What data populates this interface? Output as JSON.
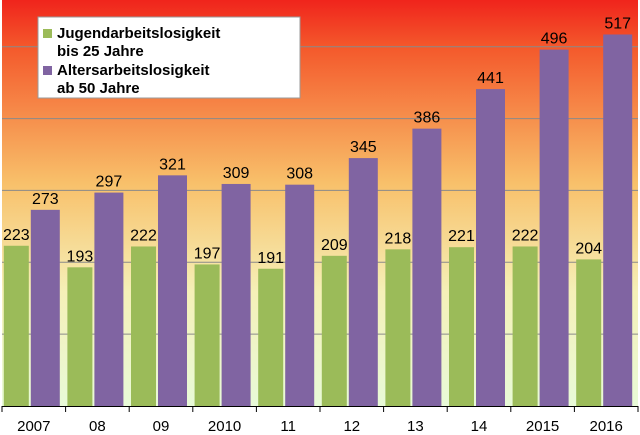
{
  "chart_data": {
    "type": "bar",
    "categories": [
      "2007",
      "08",
      "09",
      "2010",
      "11",
      "12",
      "13",
      "14",
      "2015",
      "2016"
    ],
    "series": [
      {
        "name_lines": [
          "Jugendarbeitslosigkeit",
          "bis 25 Jahre"
        ],
        "color": "#9bbb59",
        "values": [
          223,
          193,
          222,
          197,
          191,
          209,
          218,
          221,
          222,
          204
        ]
      },
      {
        "name_lines": [
          "Altersarbeitslosigkeit",
          "ab 50 Jahre"
        ],
        "color": "#8064a2",
        "values": [
          273,
          297,
          321,
          309,
          308,
          345,
          386,
          441,
          496,
          517
        ]
      }
    ],
    "ylim": [
      0,
      565
    ],
    "y_gridlines": [
      100,
      200,
      300,
      400,
      500
    ],
    "grid": true,
    "legend_position": "top-left",
    "background": "gradient red (top) to light green (bottom)"
  }
}
